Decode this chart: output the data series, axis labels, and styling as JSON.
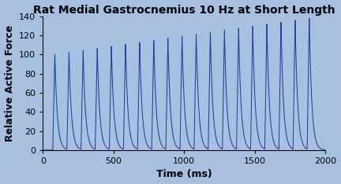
{
  "title": "Rat Medial Gastrocnemius 10 Hz at Short Length",
  "xlabel": "Time (ms)",
  "ylabel": "Relative Active Force",
  "xlim": [
    0,
    2000
  ],
  "ylim": [
    0,
    140
  ],
  "yticks": [
    0,
    20,
    40,
    60,
    80,
    100,
    120,
    140
  ],
  "xticks": [
    0,
    500,
    1000,
    1500,
    2000
  ],
  "background_color": "#a8c0e0",
  "line_color": "#2040a0",
  "num_contractions": 19,
  "stim_interval_ms": 100,
  "first_stim_ms": 70,
  "rise_time_ms": 15,
  "decay_tau_ms": 18,
  "base_amplitude": 100,
  "final_amplitude": 138,
  "title_fontsize": 10,
  "axis_label_fontsize": 9,
  "tick_fontsize": 8
}
